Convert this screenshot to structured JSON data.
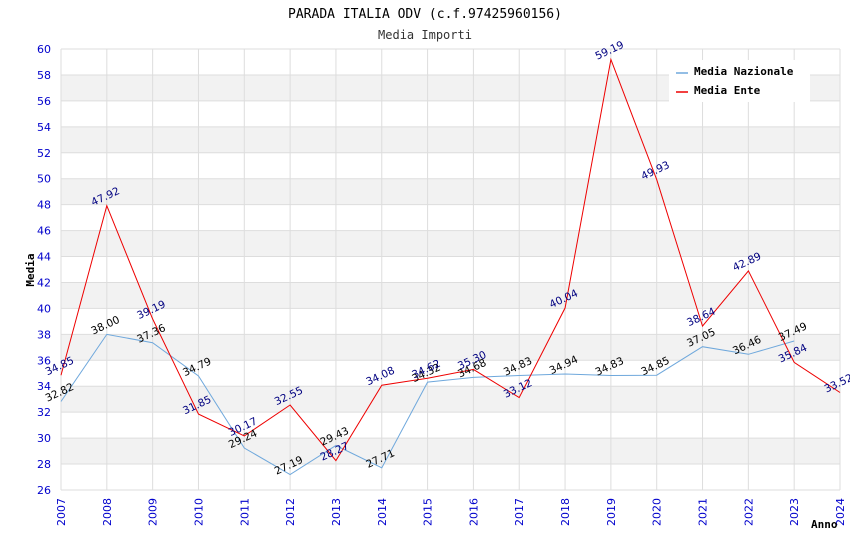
{
  "chart_data": {
    "type": "line",
    "title": "PARADA ITALIA ODV (c.f.97425960156)",
    "subtitle": "Media Importi",
    "xlabel": "Anno",
    "ylabel": "Media",
    "ylim": [
      26,
      60
    ],
    "ytick_step": 2,
    "grid": true,
    "legend_position": "top-right",
    "categories": [
      "2007",
      "2008",
      "2009",
      "2010",
      "2011",
      "2012",
      "2013",
      "2014",
      "2015",
      "2016",
      "2017",
      "2018",
      "2019",
      "2020",
      "2021",
      "2022",
      "2023",
      "2024"
    ],
    "series": [
      {
        "name": "Media Nazionale",
        "color": "#6fa8dc",
        "label_color": "#000000",
        "values": [
          32.82,
          38.0,
          37.36,
          34.79,
          29.24,
          27.19,
          29.43,
          27.71,
          34.32,
          34.68,
          34.83,
          34.94,
          34.83,
          34.85,
          37.05,
          36.46,
          37.49,
          null
        ],
        "labels": [
          "32.82",
          "38.00",
          "37.36",
          "34.79",
          "29.24",
          "27.19",
          "29.43",
          "27.71",
          "34.32",
          "34.68",
          "34.83",
          "34.94",
          "34.83",
          "34.85",
          "37.05",
          "36.46",
          "37.49",
          ""
        ]
      },
      {
        "name": "Media Ente",
        "color": "#ee0000",
        "label_color": "#000080",
        "values": [
          34.85,
          47.92,
          39.19,
          31.85,
          30.17,
          32.55,
          28.27,
          34.08,
          34.62,
          35.3,
          33.12,
          40.04,
          59.19,
          49.93,
          38.64,
          42.89,
          35.84,
          33.52
        ],
        "labels": [
          "34.85",
          "47.92",
          "39.19",
          "31.85",
          "30.17",
          "32.55",
          "28.27",
          "34.08",
          "34.62",
          "35.30",
          "33.12",
          "40.04",
          "59.19",
          "49.93",
          "38.64",
          "42.89",
          "35.84",
          "33.52"
        ]
      }
    ]
  }
}
